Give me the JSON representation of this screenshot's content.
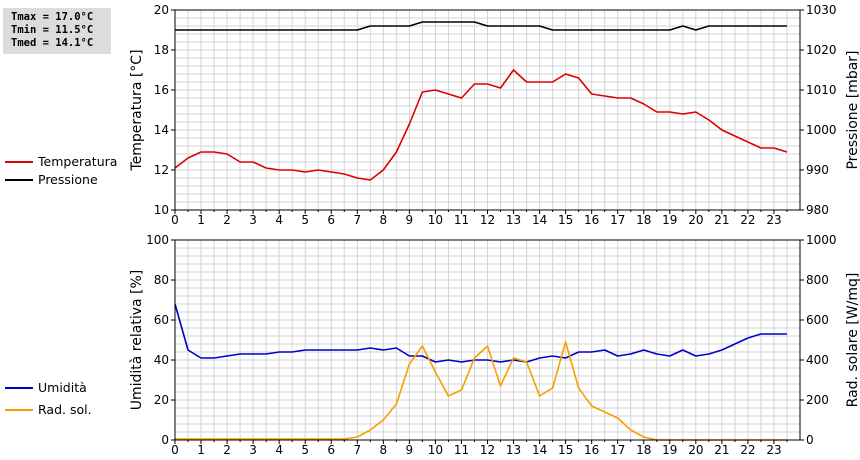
{
  "stats": {
    "tmax": "Tmax = 17.0°C",
    "tmin": "Tmin = 11.5°C",
    "tmed": "Tmed = 14.1°C"
  },
  "colors": {
    "temperature": "#dd0000",
    "pressure": "#000000",
    "humidity": "#0000cc",
    "radiation": "#f5a000",
    "grid": "#d4d4d4"
  },
  "legend_top": [
    {
      "label": "Temperatura",
      "color": "#dd0000"
    },
    {
      "label": "Pressione",
      "color": "#000000"
    }
  ],
  "legend_bottom": [
    {
      "label": "Umidità",
      "color": "#0000cc"
    },
    {
      "label": "Rad. sol.",
      "color": "#f5a000"
    }
  ],
  "chart_data": [
    {
      "type": "line",
      "xlim": [
        0,
        24
      ],
      "x_ticks": [
        "0",
        "1",
        "2",
        "3",
        "4",
        "5",
        "6",
        "7",
        "8",
        "9",
        "10",
        "11",
        "12",
        "13",
        "14",
        "15",
        "16",
        "17",
        "18",
        "19",
        "20",
        "21",
        "22",
        "23"
      ],
      "y_left": {
        "label": "Temperatura [°C]",
        "lim": [
          10,
          20
        ],
        "ticks": [
          "10",
          "12",
          "14",
          "16",
          "18",
          "20"
        ]
      },
      "y_right": {
        "label": "Pressione [mbar]",
        "lim": [
          980,
          1030
        ],
        "ticks": [
          "980",
          "990",
          "1000",
          "1010",
          "1020",
          "1030"
        ]
      },
      "grid": true,
      "legend": "left",
      "series": [
        {
          "name": "Temperatura",
          "axis": "left",
          "x": [
            0,
            0.5,
            1,
            1.5,
            2,
            2.5,
            3,
            3.5,
            4,
            4.5,
            5,
            5.5,
            6,
            6.5,
            7,
            7.5,
            8,
            8.5,
            9,
            9.5,
            10,
            10.5,
            11,
            11.5,
            12,
            12.5,
            13,
            13.5,
            14,
            14.5,
            15,
            15.5,
            16,
            16.5,
            17,
            17.5,
            18,
            18.5,
            19,
            19.5,
            20,
            20.5,
            21,
            21.5,
            22,
            22.5,
            23,
            23.5
          ],
          "y": [
            12.1,
            12.6,
            12.9,
            12.9,
            12.8,
            12.4,
            12.4,
            12.1,
            12.0,
            12.0,
            11.9,
            12.0,
            11.9,
            11.8,
            11.6,
            11.5,
            12.0,
            12.9,
            14.3,
            15.9,
            16.0,
            15.8,
            15.6,
            16.3,
            16.3,
            16.1,
            17.0,
            16.4,
            16.4,
            16.4,
            16.8,
            16.6,
            15.8,
            15.7,
            15.6,
            15.6,
            15.3,
            14.9,
            14.9,
            14.8,
            14.9,
            14.5,
            14.0,
            13.7,
            13.4,
            13.1,
            13.1,
            12.9
          ]
        },
        {
          "name": "Pressione",
          "axis": "right",
          "x": [
            0,
            0.5,
            1,
            1.5,
            2,
            2.5,
            3,
            3.5,
            4,
            4.5,
            5,
            5.5,
            6,
            6.5,
            7,
            7.5,
            8,
            8.5,
            9,
            9.5,
            10,
            10.5,
            11,
            11.5,
            12,
            12.5,
            13,
            13.5,
            14,
            14.5,
            15,
            15.5,
            16,
            16.5,
            17,
            17.5,
            18,
            18.5,
            19,
            19.5,
            20,
            20.5,
            21,
            21.5,
            22,
            22.5,
            23,
            23.5
          ],
          "y": [
            1025,
            1025,
            1025,
            1025,
            1025,
            1025,
            1025,
            1025,
            1025,
            1025,
            1025,
            1025,
            1025,
            1025,
            1025,
            1026,
            1026,
            1026,
            1026,
            1027,
            1027,
            1027,
            1027,
            1027,
            1026,
            1026,
            1026,
            1026,
            1026,
            1025,
            1025,
            1025,
            1025,
            1025,
            1025,
            1025,
            1025,
            1025,
            1025,
            1026,
            1025,
            1026,
            1026,
            1026,
            1026,
            1026,
            1026,
            1026
          ]
        }
      ]
    },
    {
      "type": "line",
      "xlim": [
        0,
        24
      ],
      "x_ticks": [
        "0",
        "1",
        "2",
        "3",
        "4",
        "5",
        "6",
        "7",
        "8",
        "9",
        "10",
        "11",
        "12",
        "13",
        "14",
        "15",
        "16",
        "17",
        "18",
        "19",
        "20",
        "21",
        "22",
        "23"
      ],
      "y_left": {
        "label": "Umidità relativa [%]",
        "lim": [
          0,
          100
        ],
        "ticks": [
          "0",
          "20",
          "40",
          "60",
          "80",
          "100"
        ]
      },
      "y_right": {
        "label": "Rad. solare [W/mq]",
        "lim": [
          0,
          1000
        ],
        "ticks": [
          "0",
          "200",
          "400",
          "600",
          "800",
          "1000"
        ]
      },
      "grid": true,
      "legend": "left",
      "series": [
        {
          "name": "Umidità",
          "axis": "left",
          "x": [
            0,
            0.5,
            1,
            1.5,
            2,
            2.5,
            3,
            3.5,
            4,
            4.5,
            5,
            5.5,
            6,
            6.5,
            7,
            7.5,
            8,
            8.5,
            9,
            9.5,
            10,
            10.5,
            11,
            11.5,
            12,
            12.5,
            13,
            13.5,
            14,
            14.5,
            15,
            15.5,
            16,
            16.5,
            17,
            17.5,
            18,
            18.5,
            19,
            19.5,
            20,
            20.5,
            21,
            21.5,
            22,
            22.5,
            23,
            23.5
          ],
          "y": [
            68,
            45,
            41,
            41,
            42,
            43,
            43,
            43,
            44,
            44,
            45,
            45,
            45,
            45,
            45,
            46,
            45,
            46,
            42,
            42,
            39,
            40,
            39,
            40,
            40,
            39,
            40,
            39,
            41,
            42,
            41,
            44,
            44,
            45,
            42,
            43,
            45,
            43,
            42,
            45,
            42,
            43,
            45,
            48,
            51,
            53,
            53,
            53
          ]
        },
        {
          "name": "Rad. sol.",
          "axis": "right",
          "x": [
            0,
            0.5,
            1,
            1.5,
            2,
            2.5,
            3,
            3.5,
            4,
            4.5,
            5,
            5.5,
            6,
            6.5,
            7,
            7.5,
            8,
            8.5,
            9,
            9.5,
            10,
            10.5,
            11,
            11.5,
            12,
            12.5,
            13,
            13.5,
            14,
            14.5,
            15,
            15.5,
            16,
            16.5,
            17,
            17.5,
            18,
            18.5,
            19,
            19.5,
            20,
            20.5,
            21,
            21.5,
            22,
            22.5,
            23,
            23.5
          ],
          "y": [
            5,
            5,
            5,
            5,
            5,
            5,
            5,
            5,
            5,
            5,
            5,
            5,
            5,
            5,
            15,
            50,
            100,
            180,
            380,
            470,
            340,
            220,
            250,
            410,
            470,
            270,
            410,
            390,
            220,
            260,
            490,
            260,
            170,
            140,
            110,
            50,
            15,
            0,
            0,
            0,
            0,
            0,
            0,
            0,
            0,
            0,
            0,
            0
          ]
        }
      ]
    }
  ]
}
